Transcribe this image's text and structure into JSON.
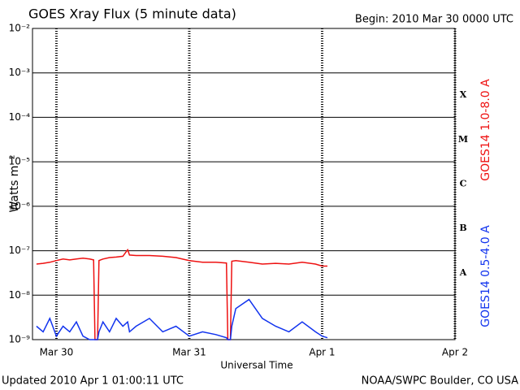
{
  "chart_data": {
    "type": "line",
    "title": "GOES Xray Flux (5 minute data)",
    "subtitle": "Begin:  2010 Mar 30 0000 UTC",
    "y_label": "Watts m⁻²",
    "x_label": "Universal Time",
    "footer_left": "Updated 2010 Apr  1 01:00:11 UTC",
    "footer_right": "NOAA/SWPC Boulder, CO USA",
    "flare_classes": [
      "A",
      "B",
      "C",
      "M",
      "X"
    ],
    "log_scale": true,
    "grid": true,
    "xlim": [
      -0.18,
      3
    ],
    "xticks": [
      {
        "value": 0,
        "label": "Mar 30"
      },
      {
        "value": 1,
        "label": "Mar 31"
      },
      {
        "value": 2,
        "label": "Apr 1"
      },
      {
        "value": 3,
        "label": "Apr 2"
      }
    ],
    "ylim": [
      1e-09,
      0.01
    ],
    "yticks": [
      {
        "value": 1e-09,
        "label": "10⁻⁹"
      },
      {
        "value": 1e-08,
        "label": "10⁻⁸"
      },
      {
        "value": 1e-07,
        "label": "10⁻⁷"
      },
      {
        "value": 1e-06,
        "label": "10⁻⁶"
      },
      {
        "value": 1e-05,
        "label": "10⁻⁵"
      },
      {
        "value": 0.0001,
        "label": "10⁻⁴"
      },
      {
        "value": 0.001,
        "label": "10⁻³"
      },
      {
        "value": 0.01,
        "label": "10⁻²"
      }
    ],
    "x": [
      -0.15,
      -0.1,
      -0.05,
      0,
      0.05,
      0.1,
      0.15,
      0.2,
      0.25,
      0.28,
      0.29,
      0.31,
      0.32,
      0.35,
      0.4,
      0.45,
      0.5,
      0.536,
      0.55,
      0.6,
      0.7,
      0.8,
      0.9,
      1.0,
      1.1,
      1.2,
      1.28,
      1.29,
      1.31,
      1.32,
      1.35,
      1.45,
      1.55,
      1.65,
      1.75,
      1.85,
      1.95,
      2.0,
      2.04
    ],
    "series": [
      {
        "name": "GOES14 1.0-8.0 A",
        "color": "#ee1111",
        "values": [
          5e-08,
          5.2e-08,
          5.5e-08,
          6e-08,
          6.5e-08,
          6.2e-08,
          6.5e-08,
          6.8e-08,
          6.5e-08,
          6.2e-08,
          1e-09,
          1e-09,
          6e-08,
          6.5e-08,
          7e-08,
          7.2e-08,
          7.5e-08,
          1.05e-07,
          8e-08,
          7.8e-08,
          7.8e-08,
          7.5e-08,
          7e-08,
          6e-08,
          5.5e-08,
          5.5e-08,
          5.3e-08,
          1e-09,
          1e-09,
          5.8e-08,
          6e-08,
          5.5e-08,
          5e-08,
          5.2e-08,
          5e-08,
          5.5e-08,
          5e-08,
          4.5e-08,
          4.5e-08
        ]
      },
      {
        "name": "GOES14 0.5-4.0 A",
        "color": "#1133ee",
        "values": [
          2e-09,
          1.5e-09,
          3e-09,
          1.2e-09,
          2e-09,
          1.5e-09,
          2.5e-09,
          1.2e-09,
          1e-09,
          1e-09,
          1e-09,
          1e-09,
          1.5e-09,
          2.5e-09,
          1.5e-09,
          3e-09,
          2e-09,
          2.5e-09,
          1.5e-09,
          2e-09,
          3e-09,
          1.5e-09,
          2e-09,
          1.2e-09,
          1.5e-09,
          1.3e-09,
          1.1e-09,
          1e-09,
          1e-09,
          2e-09,
          5e-09,
          8e-09,
          3e-09,
          2e-09,
          1.5e-09,
          2.5e-09,
          1.5e-09,
          1.2e-09,
          1.1e-09
        ]
      }
    ]
  }
}
